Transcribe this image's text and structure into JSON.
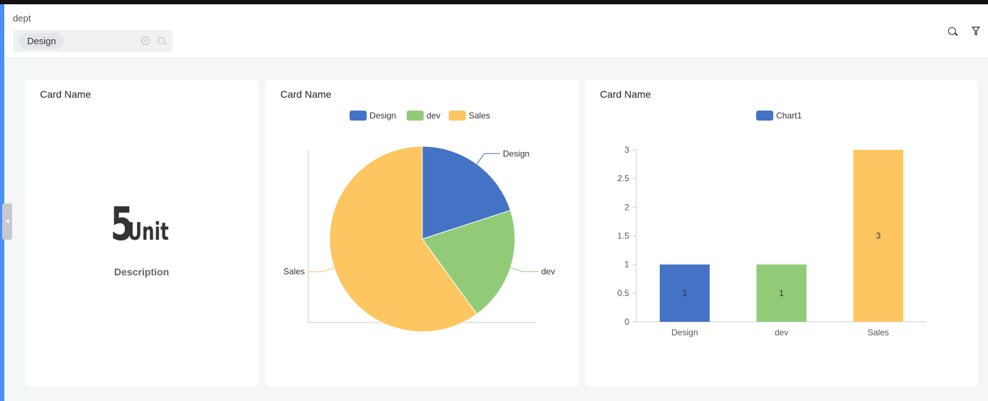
{
  "filter": {
    "label": "dept",
    "selected_tag": "Design",
    "clear_glyph": "×",
    "icons": [
      "search-icon",
      "filter-icon",
      "close-circle-icon"
    ]
  },
  "sidebar_handle": {
    "glyph": "◀"
  },
  "cards": [
    {
      "title": "Card Name",
      "kpi_value": "5",
      "kpi_unit": "Unit",
      "description": "Description"
    },
    {
      "title": "Card Name"
    },
    {
      "title": "Card Name"
    }
  ],
  "colors": {
    "accent": "#4a8ef7",
    "design": "#4472c4",
    "dev": "#92cb77",
    "sales": "#fdc660"
  },
  "chart_data": [
    {
      "type": "pie",
      "legend": [
        "Design",
        "dev",
        "Sales"
      ],
      "slices": [
        {
          "label": "Design",
          "value": 1
        },
        {
          "label": "dev",
          "value": 1
        },
        {
          "label": "Sales",
          "value": 3
        }
      ],
      "legend_position": "top-center"
    },
    {
      "type": "bar",
      "legend": [
        "Chart1"
      ],
      "categories": [
        "Design",
        "dev",
        "Sales"
      ],
      "series": [
        {
          "name": "Chart1",
          "values": [
            1,
            1,
            3
          ]
        }
      ],
      "ylim": [
        0,
        3
      ],
      "yticks": [
        "0",
        "0.5",
        "1",
        "1.5",
        "2",
        "2.5",
        "3"
      ],
      "data_labels": [
        "1",
        "1",
        "3"
      ],
      "legend_position": "top-center"
    }
  ]
}
